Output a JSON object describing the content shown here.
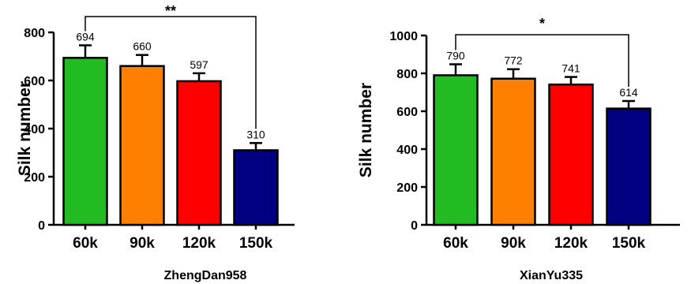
{
  "chart_data": [
    {
      "type": "bar",
      "categories": [
        "60k",
        "90k",
        "120k",
        "150k"
      ],
      "values": [
        694,
        660,
        597,
        310
      ],
      "errors": [
        52,
        46,
        33,
        30
      ],
      "data_labels": [
        "694",
        "660",
        "597",
        "310"
      ],
      "colors": [
        "#22BB22",
        "#FF8000",
        "#FF0000",
        "#000080"
      ],
      "ylabel": "Silk number",
      "xlabel": "ZhengDan958",
      "ylim": [
        0,
        800
      ],
      "yticks": [
        0,
        200,
        400,
        600,
        800
      ],
      "significance": {
        "from": "60k",
        "to": "150k",
        "label": "**"
      },
      "grid": false,
      "legend": "none"
    },
    {
      "type": "bar",
      "categories": [
        "60k",
        "90k",
        "120k",
        "150k"
      ],
      "values": [
        790,
        772,
        741,
        614
      ],
      "errors": [
        58,
        50,
        40,
        40
      ],
      "data_labels": [
        "790",
        "772",
        "741",
        "614"
      ],
      "colors": [
        "#22BB22",
        "#FF8000",
        "#FF0000",
        "#000080"
      ],
      "ylabel": "Silk number",
      "xlabel": "XianYu335",
      "ylim": [
        0,
        1000
      ],
      "yticks": [
        0,
        200,
        400,
        600,
        800,
        1000
      ],
      "significance": {
        "from": "60k",
        "to": "150k",
        "label": "*"
      },
      "grid": false,
      "legend": "none"
    }
  ]
}
